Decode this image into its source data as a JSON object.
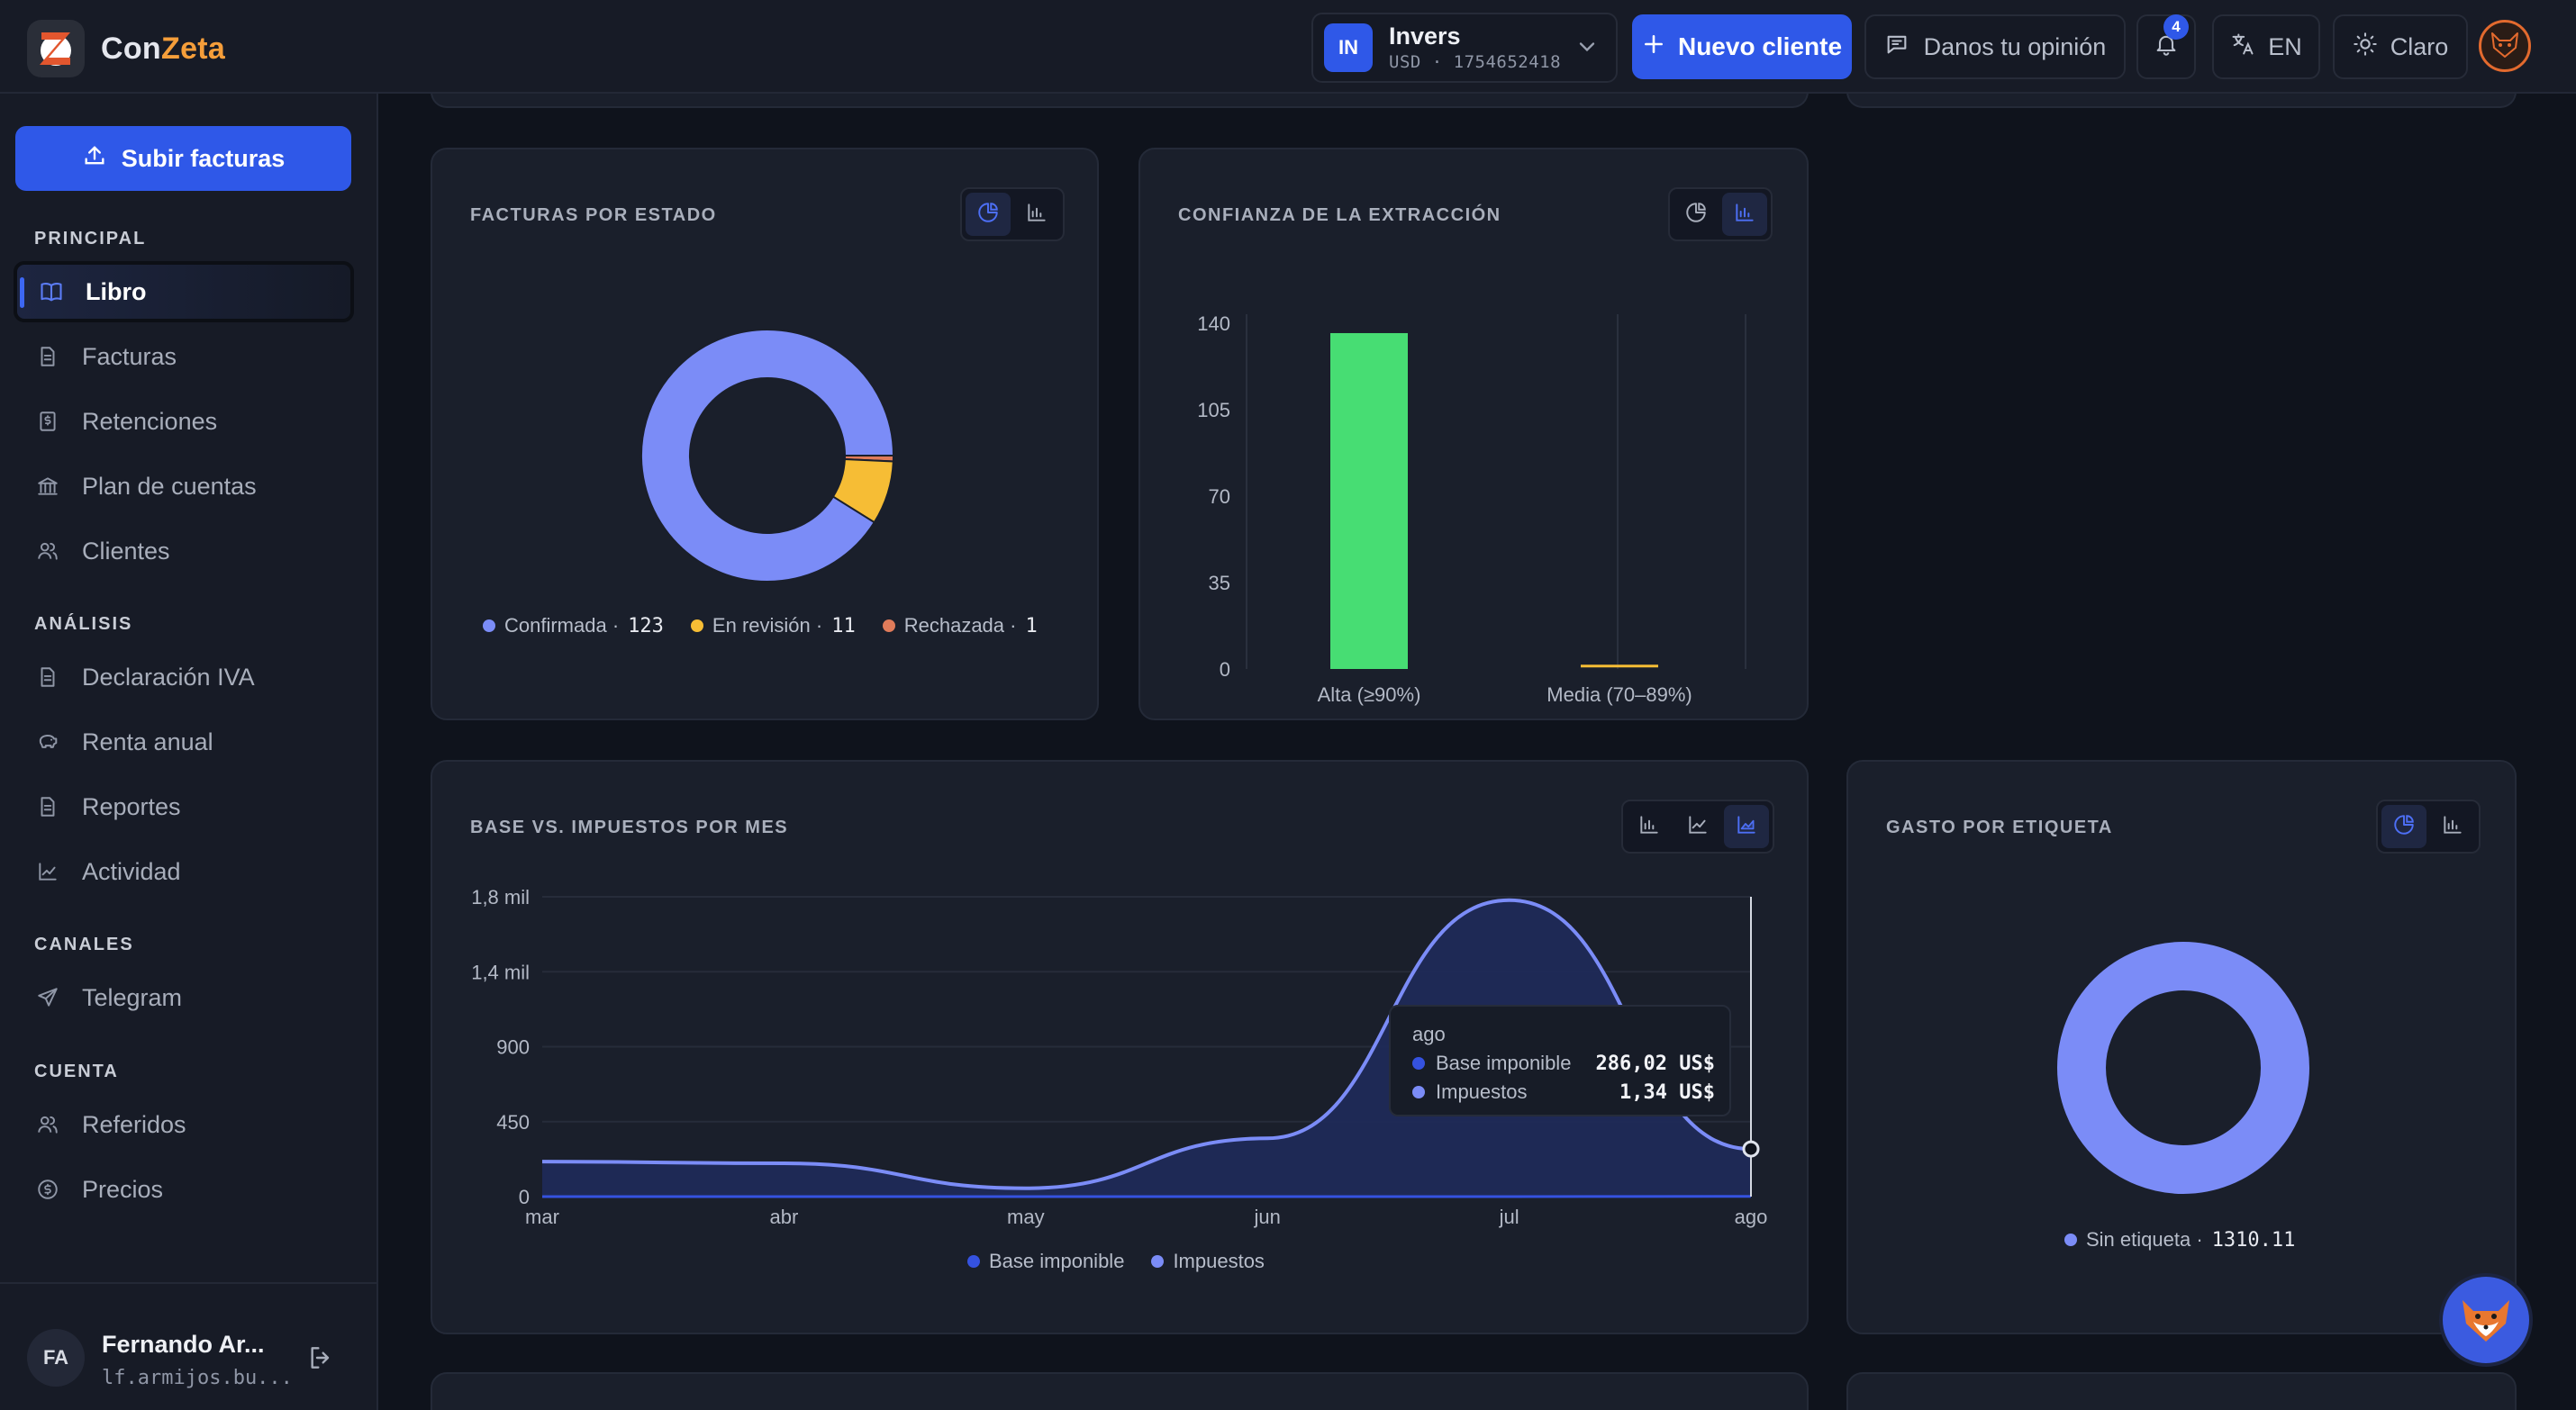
{
  "brand": {
    "name_a": "Con",
    "name_b": "Zeta",
    "logo_letter": "Z"
  },
  "header": {
    "client": {
      "initials": "IN",
      "name": "Invers",
      "sub": "USD · 1754652418"
    },
    "new_client_label": "Nuevo cliente",
    "feedback_label": "Danos tu opinión",
    "notifications_count": "4",
    "language_label": "EN",
    "theme_label": "Claro"
  },
  "sidebar": {
    "upload_label": "Subir facturas",
    "sections": {
      "principal": "PRINCIPAL",
      "analisis": "ANÁLISIS",
      "canales": "CANALES",
      "cuenta": "CUENTA"
    },
    "items": [
      {
        "label": "Libro",
        "icon": "book-icon",
        "active": true
      },
      {
        "label": "Facturas",
        "icon": "document-icon"
      },
      {
        "label": "Retenciones",
        "icon": "receipt-dollar-icon"
      },
      {
        "label": "Plan de cuentas",
        "icon": "bank-icon"
      },
      {
        "label": "Clientes",
        "icon": "users-icon"
      },
      {
        "label": "Declaración IVA",
        "icon": "document-icon"
      },
      {
        "label": "Renta anual",
        "icon": "piggy-bank-icon"
      },
      {
        "label": "Reportes",
        "icon": "document-icon"
      },
      {
        "label": "Actividad",
        "icon": "activity-chart-icon"
      },
      {
        "label": "Telegram",
        "icon": "send-icon"
      },
      {
        "label": "Referidos",
        "icon": "users-icon"
      },
      {
        "label": "Precios",
        "icon": "dollar-circle-icon"
      }
    ],
    "user": {
      "initials": "FA",
      "name": "Fernando Ar...",
      "email": "lf.armijos.bu..."
    }
  },
  "colors": {
    "accent": "#2f58e8",
    "confirmed": "#7b8cf7",
    "review": "#f6bd35",
    "rejected": "#e07b5a",
    "high": "#47dd73",
    "base": "#3552e0",
    "taxes": "#7b8cf7"
  },
  "cards": {
    "status": {
      "title": "FACTURAS POR ESTADO"
    },
    "confidence": {
      "title": "CONFIANZA DE LA EXTRACCIÓN"
    },
    "monthly": {
      "title": "BASE VS. IMPUESTOS POR MES"
    },
    "tags": {
      "title": "GASTO POR ETIQUETA"
    }
  },
  "tooltip": {
    "title": "ago",
    "rows": [
      {
        "label": "Base imponible",
        "value": "286,02 US$"
      },
      {
        "label": "Impuestos",
        "value": "1,34 US$"
      }
    ]
  },
  "chart_data": [
    {
      "type": "pie",
      "title": "FACTURAS POR ESTADO",
      "donut": true,
      "categories": [
        "Confirmada",
        "En revisión",
        "Rechazada"
      ],
      "values": [
        123,
        11,
        1
      ],
      "legend_position": "bottom"
    },
    {
      "type": "bar",
      "title": "CONFIANZA DE LA EXTRACCIÓN",
      "categories": [
        "Alta (≥90%)",
        "Media (70–89%)"
      ],
      "values": [
        136,
        1
      ],
      "yticks": [
        0,
        35,
        70,
        105,
        140
      ],
      "ylim": [
        0,
        140
      ],
      "grid": true
    },
    {
      "type": "area",
      "title": "BASE VS. IMPUESTOS POR MES",
      "x": [
        "mar",
        "abr",
        "may",
        "jun",
        "jul",
        "ago"
      ],
      "ytick_labels": [
        "0",
        "450",
        "900",
        "1,4 mil",
        "1,8 mil"
      ],
      "yticks": [
        0,
        450,
        900,
        1350,
        1800
      ],
      "ylim": [
        0,
        1800
      ],
      "series": [
        {
          "name": "Base imponible",
          "values": [
            210,
            200,
            50,
            350,
            1780,
            286.02
          ]
        },
        {
          "name": "Impuestos",
          "values": [
            0,
            0,
            0,
            0,
            0,
            1.34
          ]
        }
      ],
      "legend_position": "bottom",
      "grid": true
    },
    {
      "type": "pie",
      "title": "GASTO POR ETIQUETA",
      "donut": true,
      "categories": [
        "Sin etiqueta"
      ],
      "values": [
        1310.11
      ],
      "value_labels": [
        "1310.11"
      ],
      "legend_position": "bottom"
    }
  ]
}
